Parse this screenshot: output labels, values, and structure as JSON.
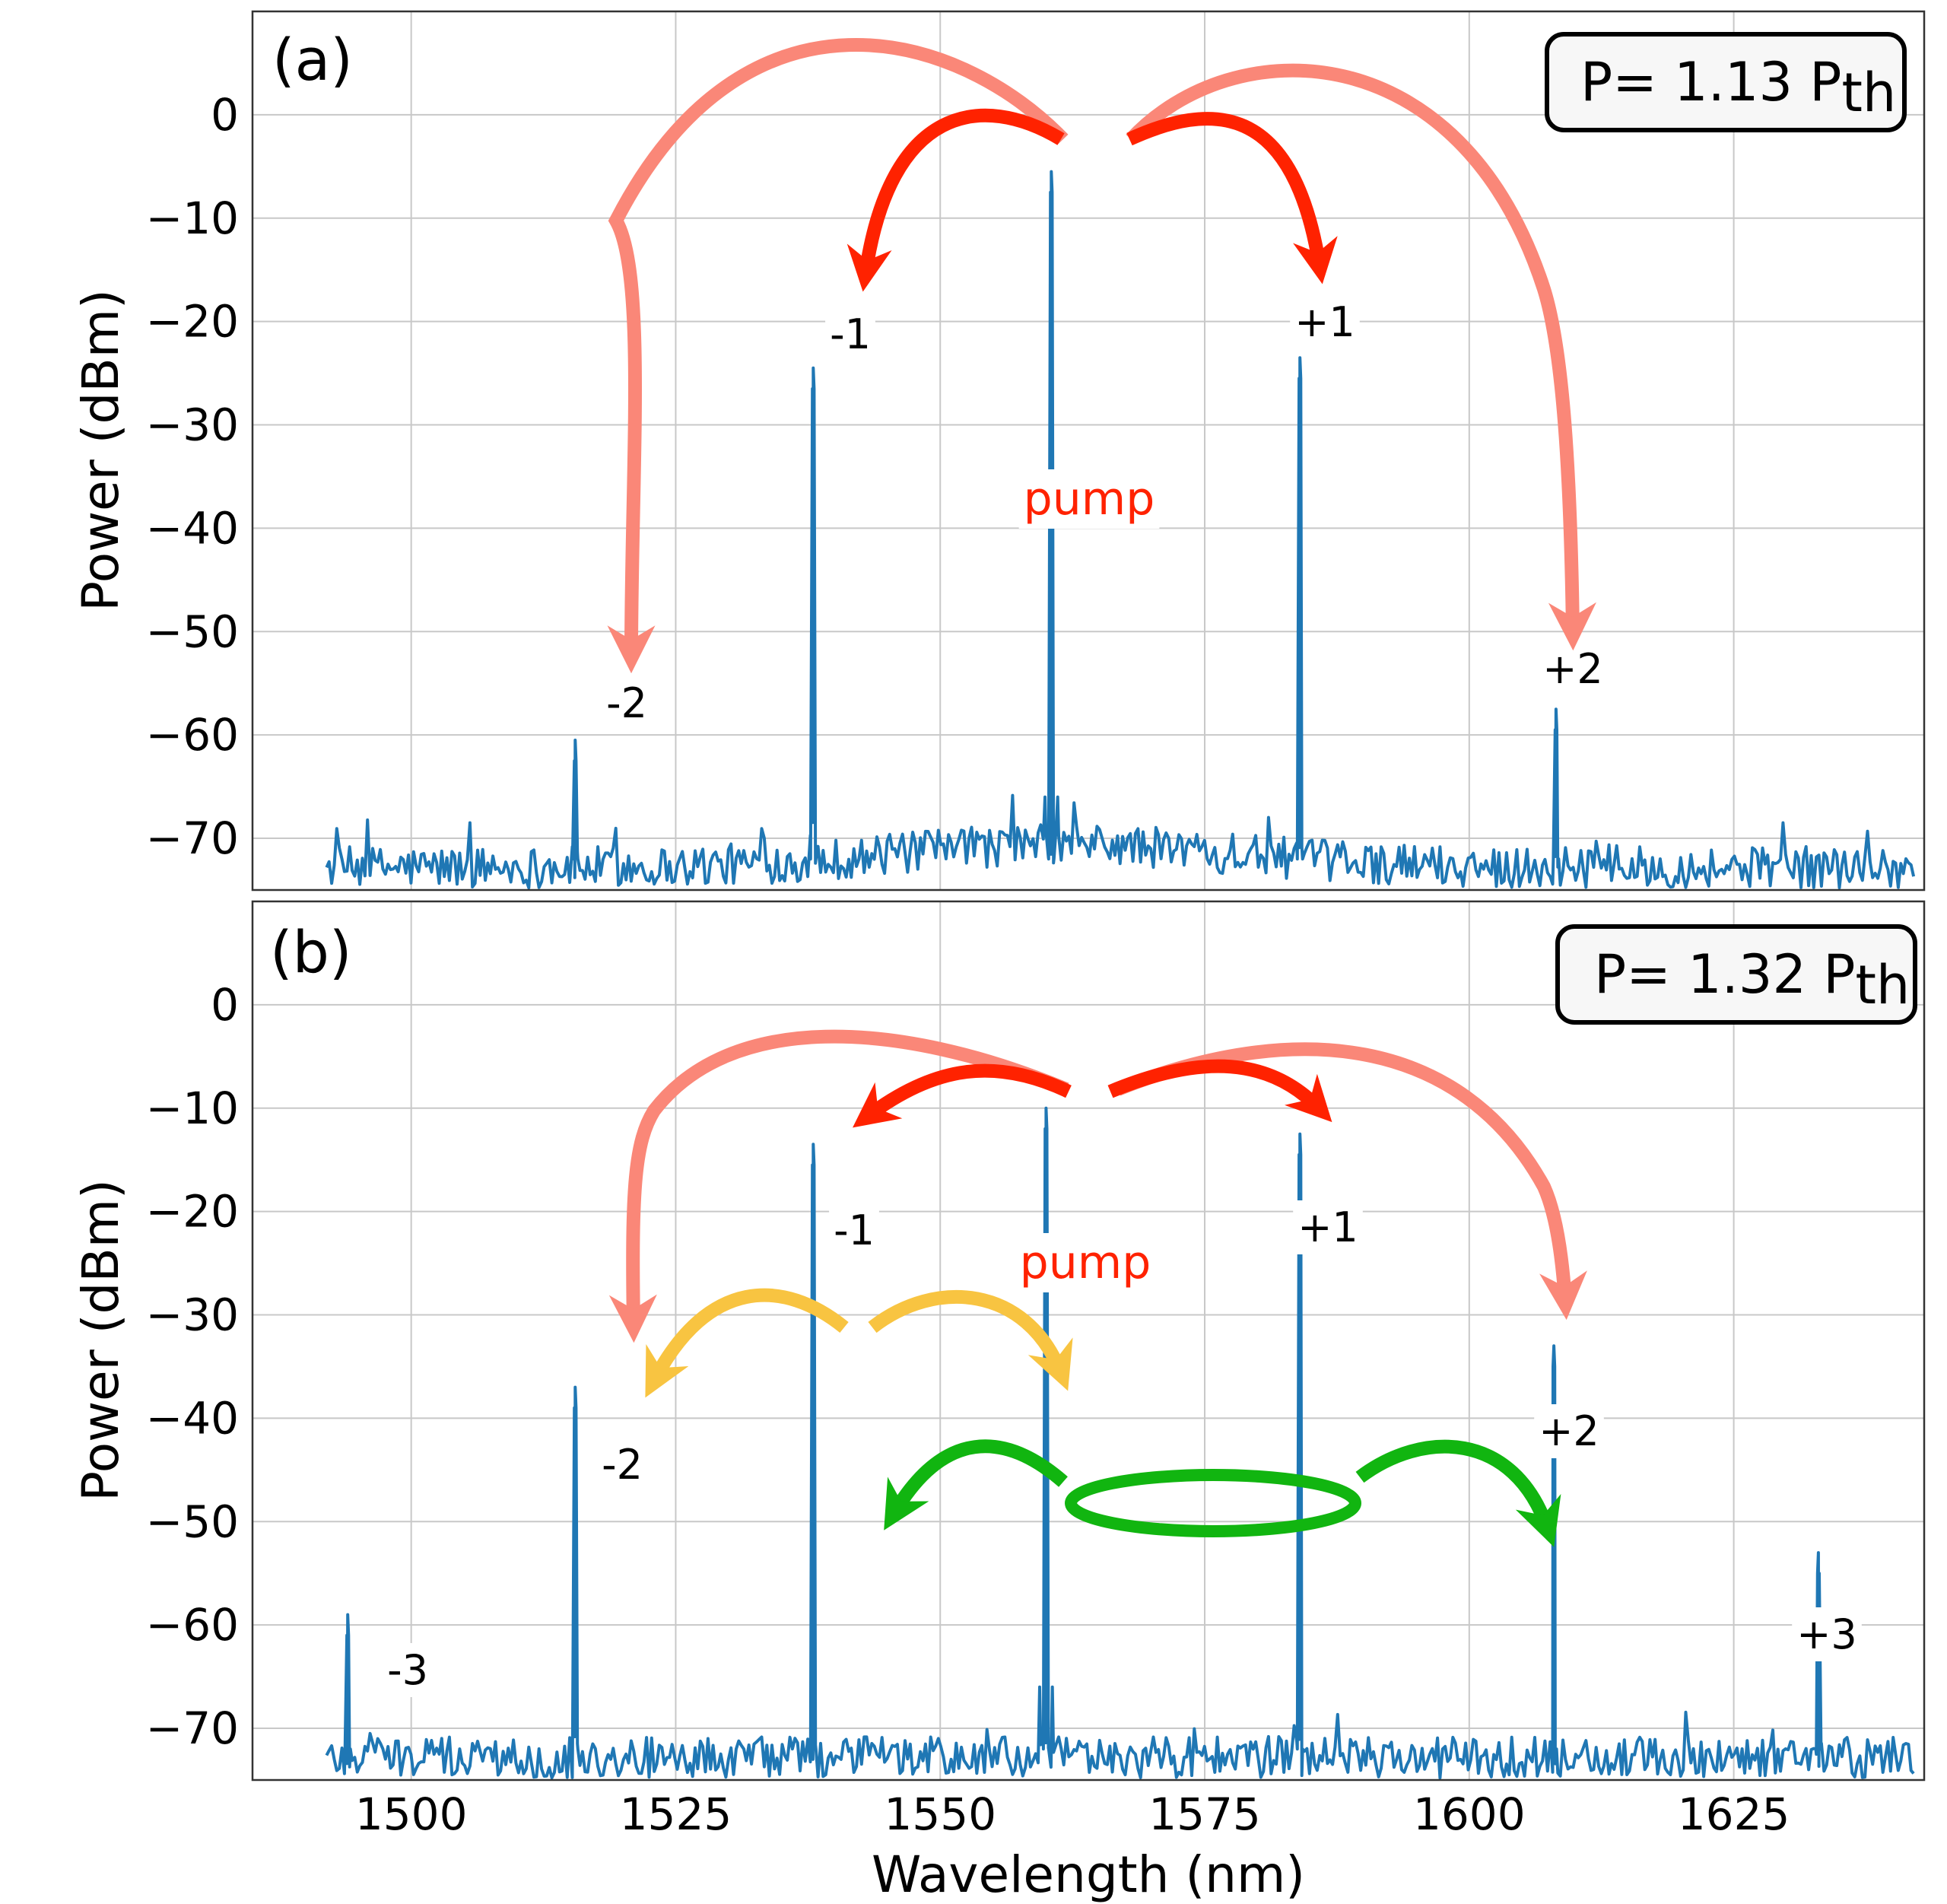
{
  "chart_data": {
    "type": "line",
    "x_label": "Wavelength (nm)",
    "y_label": "Power (dBm)",
    "xlim": [
      1485,
      1643
    ],
    "ylim": [
      -75,
      10
    ],
    "x_ticks": [
      1500,
      1525,
      1550,
      1575,
      1600,
      1625
    ],
    "y_ticks": [
      0,
      -10,
      -20,
      -30,
      -40,
      -50,
      -60,
      -70
    ],
    "x_tick_labels": [
      "1500",
      "1525",
      "1550",
      "1575",
      "1600",
      "1625"
    ],
    "y_tick_labels": [
      "0",
      "−10",
      "−20",
      "−30",
      "−40",
      "−50",
      "−60",
      "−70"
    ],
    "grid": true,
    "trace_color": "#1f77b4",
    "spectrum_range": [
      1492,
      1642
    ],
    "noise_floor": -73,
    "panels": [
      {
        "label": "(a)",
        "power_label": "P= 1.13 P",
        "power_subscript": "th",
        "pump": {
          "text": "pump",
          "wavelength": 1560.5,
          "power": -5.5
        },
        "peaks": [
          {
            "label": "-2",
            "wavelength": 1515.5,
            "power": -60.5
          },
          {
            "label": "-1",
            "wavelength": 1538.0,
            "power": -24.5
          },
          {
            "label": "+1",
            "wavelength": 1584.0,
            "power": -23.5
          },
          {
            "label": "+2",
            "wavelength": 1608.2,
            "power": -57.5
          }
        ]
      },
      {
        "label": "(b)",
        "power_label": "P= 1.32 P",
        "power_subscript": "th",
        "pump": {
          "text": "pump",
          "wavelength": 1560.0,
          "power": -10.0
        },
        "peaks": [
          {
            "label": "-3",
            "wavelength": 1494.0,
            "power": -59.0
          },
          {
            "label": "-2",
            "wavelength": 1515.5,
            "power": -37.0
          },
          {
            "label": "-1",
            "wavelength": 1538.0,
            "power": -13.5
          },
          {
            "label": "+1",
            "wavelength": 1584.0,
            "power": -12.5
          },
          {
            "label": "+2",
            "wavelength": 1608.0,
            "power": -33.0
          },
          {
            "label": "+3",
            "wavelength": 1633.0,
            "power": -53.0
          }
        ]
      }
    ]
  },
  "colors": {
    "primary_arrow": "#ff2200",
    "secondary_arrow": "#fa8778",
    "yellow_arrow": "#f8c441",
    "green_arrow": "#11b510",
    "pump_text": "#ff2200"
  }
}
